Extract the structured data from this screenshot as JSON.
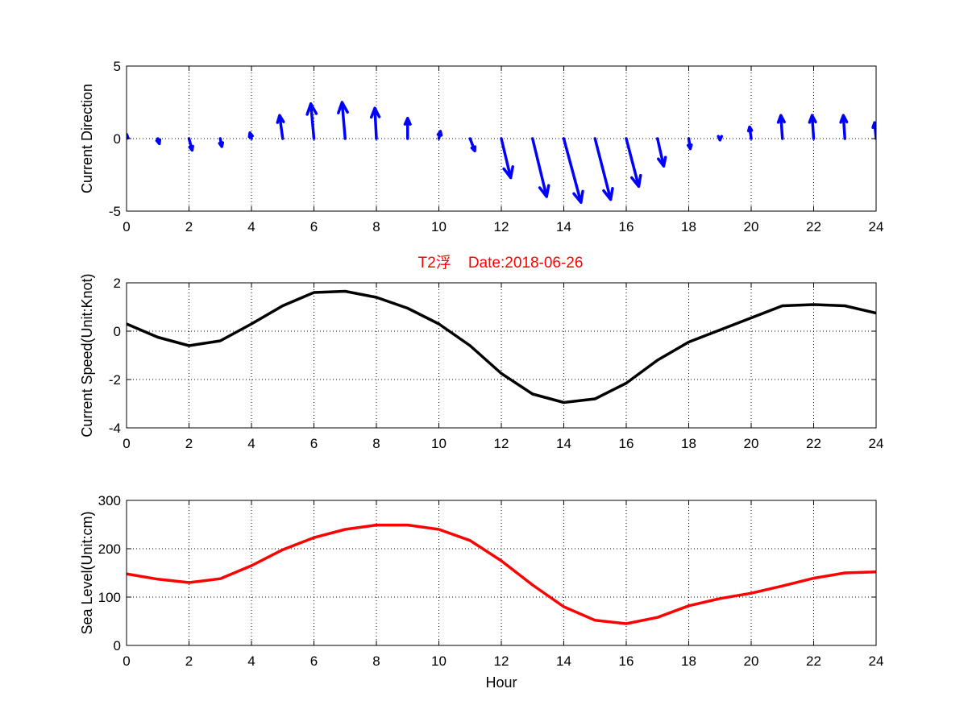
{
  "figure": {
    "title": "T2浮    Date:2018-06-26",
    "title_color": "#ff0000"
  },
  "chart_data": [
    {
      "type": "quiver",
      "ylabel": "Current Direction",
      "xlabel": "",
      "xlim": [
        0,
        24
      ],
      "ylim": [
        -5,
        5
      ],
      "xticks": [
        "0",
        "2",
        "4",
        "6",
        "8",
        "10",
        "12",
        "14",
        "16",
        "18",
        "20",
        "22",
        "24"
      ],
      "yticks": [
        "-5",
        "0",
        "5"
      ],
      "grid": true,
      "color": "#0000ff",
      "vectors": [
        {
          "x": 0,
          "u": 0.0,
          "v": 0.3
        },
        {
          "x": 1,
          "u": 0.05,
          "v": -0.35
        },
        {
          "x": 2,
          "u": 0.1,
          "v": -0.8
        },
        {
          "x": 3,
          "u": 0.05,
          "v": -0.55
        },
        {
          "x": 4,
          "u": -0.05,
          "v": 0.4
        },
        {
          "x": 5,
          "u": -0.1,
          "v": 1.6
        },
        {
          "x": 6,
          "u": -0.1,
          "v": 2.4
        },
        {
          "x": 7,
          "u": -0.1,
          "v": 2.5
        },
        {
          "x": 8,
          "u": -0.05,
          "v": 2.1
        },
        {
          "x": 9,
          "u": 0.0,
          "v": 1.4
        },
        {
          "x": 10,
          "u": 0.05,
          "v": 0.5
        },
        {
          "x": 11,
          "u": 0.15,
          "v": -0.85
        },
        {
          "x": 12,
          "u": 0.3,
          "v": -2.7
        },
        {
          "x": 13,
          "u": 0.45,
          "v": -4.0
        },
        {
          "x": 14,
          "u": 0.55,
          "v": -4.4
        },
        {
          "x": 15,
          "u": 0.5,
          "v": -4.2
        },
        {
          "x": 16,
          "u": 0.4,
          "v": -3.3
        },
        {
          "x": 17,
          "u": 0.2,
          "v": -1.9
        },
        {
          "x": 18,
          "u": 0.05,
          "v": -0.7
        },
        {
          "x": 19,
          "u": 0.0,
          "v": -0.1
        },
        {
          "x": 20,
          "u": -0.05,
          "v": 0.8
        },
        {
          "x": 21,
          "u": -0.05,
          "v": 1.6
        },
        {
          "x": 22,
          "u": -0.05,
          "v": 1.6
        },
        {
          "x": 23,
          "u": -0.05,
          "v": 1.6
        },
        {
          "x": 24,
          "u": -0.05,
          "v": 1.1
        }
      ]
    },
    {
      "type": "line",
      "ylabel": "Current Speed(Unit:Knot)",
      "xlabel": "",
      "xlim": [
        0,
        24
      ],
      "ylim": [
        -4,
        2
      ],
      "xticks": [
        "0",
        "2",
        "4",
        "6",
        "8",
        "10",
        "12",
        "14",
        "16",
        "18",
        "20",
        "22",
        "24"
      ],
      "yticks": [
        "-4",
        "-2",
        "0",
        "2"
      ],
      "grid": true,
      "color": "#000000",
      "x": [
        0,
        1,
        2,
        3,
        4,
        5,
        6,
        7,
        8,
        9,
        10,
        11,
        12,
        13,
        14,
        15,
        16,
        17,
        18,
        19,
        20,
        21,
        22,
        23,
        24
      ],
      "y": [
        0.3,
        -0.25,
        -0.6,
        -0.4,
        0.3,
        1.05,
        1.6,
        1.65,
        1.4,
        0.95,
        0.3,
        -0.6,
        -1.75,
        -2.6,
        -2.95,
        -2.8,
        -2.15,
        -1.2,
        -0.45,
        0.05,
        0.55,
        1.05,
        1.1,
        1.05,
        0.75
      ]
    },
    {
      "type": "line",
      "ylabel": "Sea Level(Unit:cm)",
      "xlabel": "Hour",
      "xlim": [
        0,
        24
      ],
      "ylim": [
        0,
        300
      ],
      "xticks": [
        "0",
        "2",
        "4",
        "6",
        "8",
        "10",
        "12",
        "14",
        "16",
        "18",
        "20",
        "22",
        "24"
      ],
      "yticks": [
        "0",
        "100",
        "200",
        "300"
      ],
      "grid": true,
      "color": "#ff0000",
      "x": [
        0,
        1,
        2,
        3,
        4,
        5,
        6,
        7,
        8,
        9,
        10,
        11,
        12,
        13,
        14,
        15,
        16,
        17,
        18,
        19,
        20,
        21,
        22,
        23,
        24
      ],
      "y": [
        148,
        137,
        130,
        138,
        165,
        198,
        223,
        240,
        249,
        249,
        240,
        217,
        175,
        125,
        80,
        52,
        45,
        58,
        82,
        97,
        108,
        123,
        139,
        150,
        152
      ]
    }
  ]
}
